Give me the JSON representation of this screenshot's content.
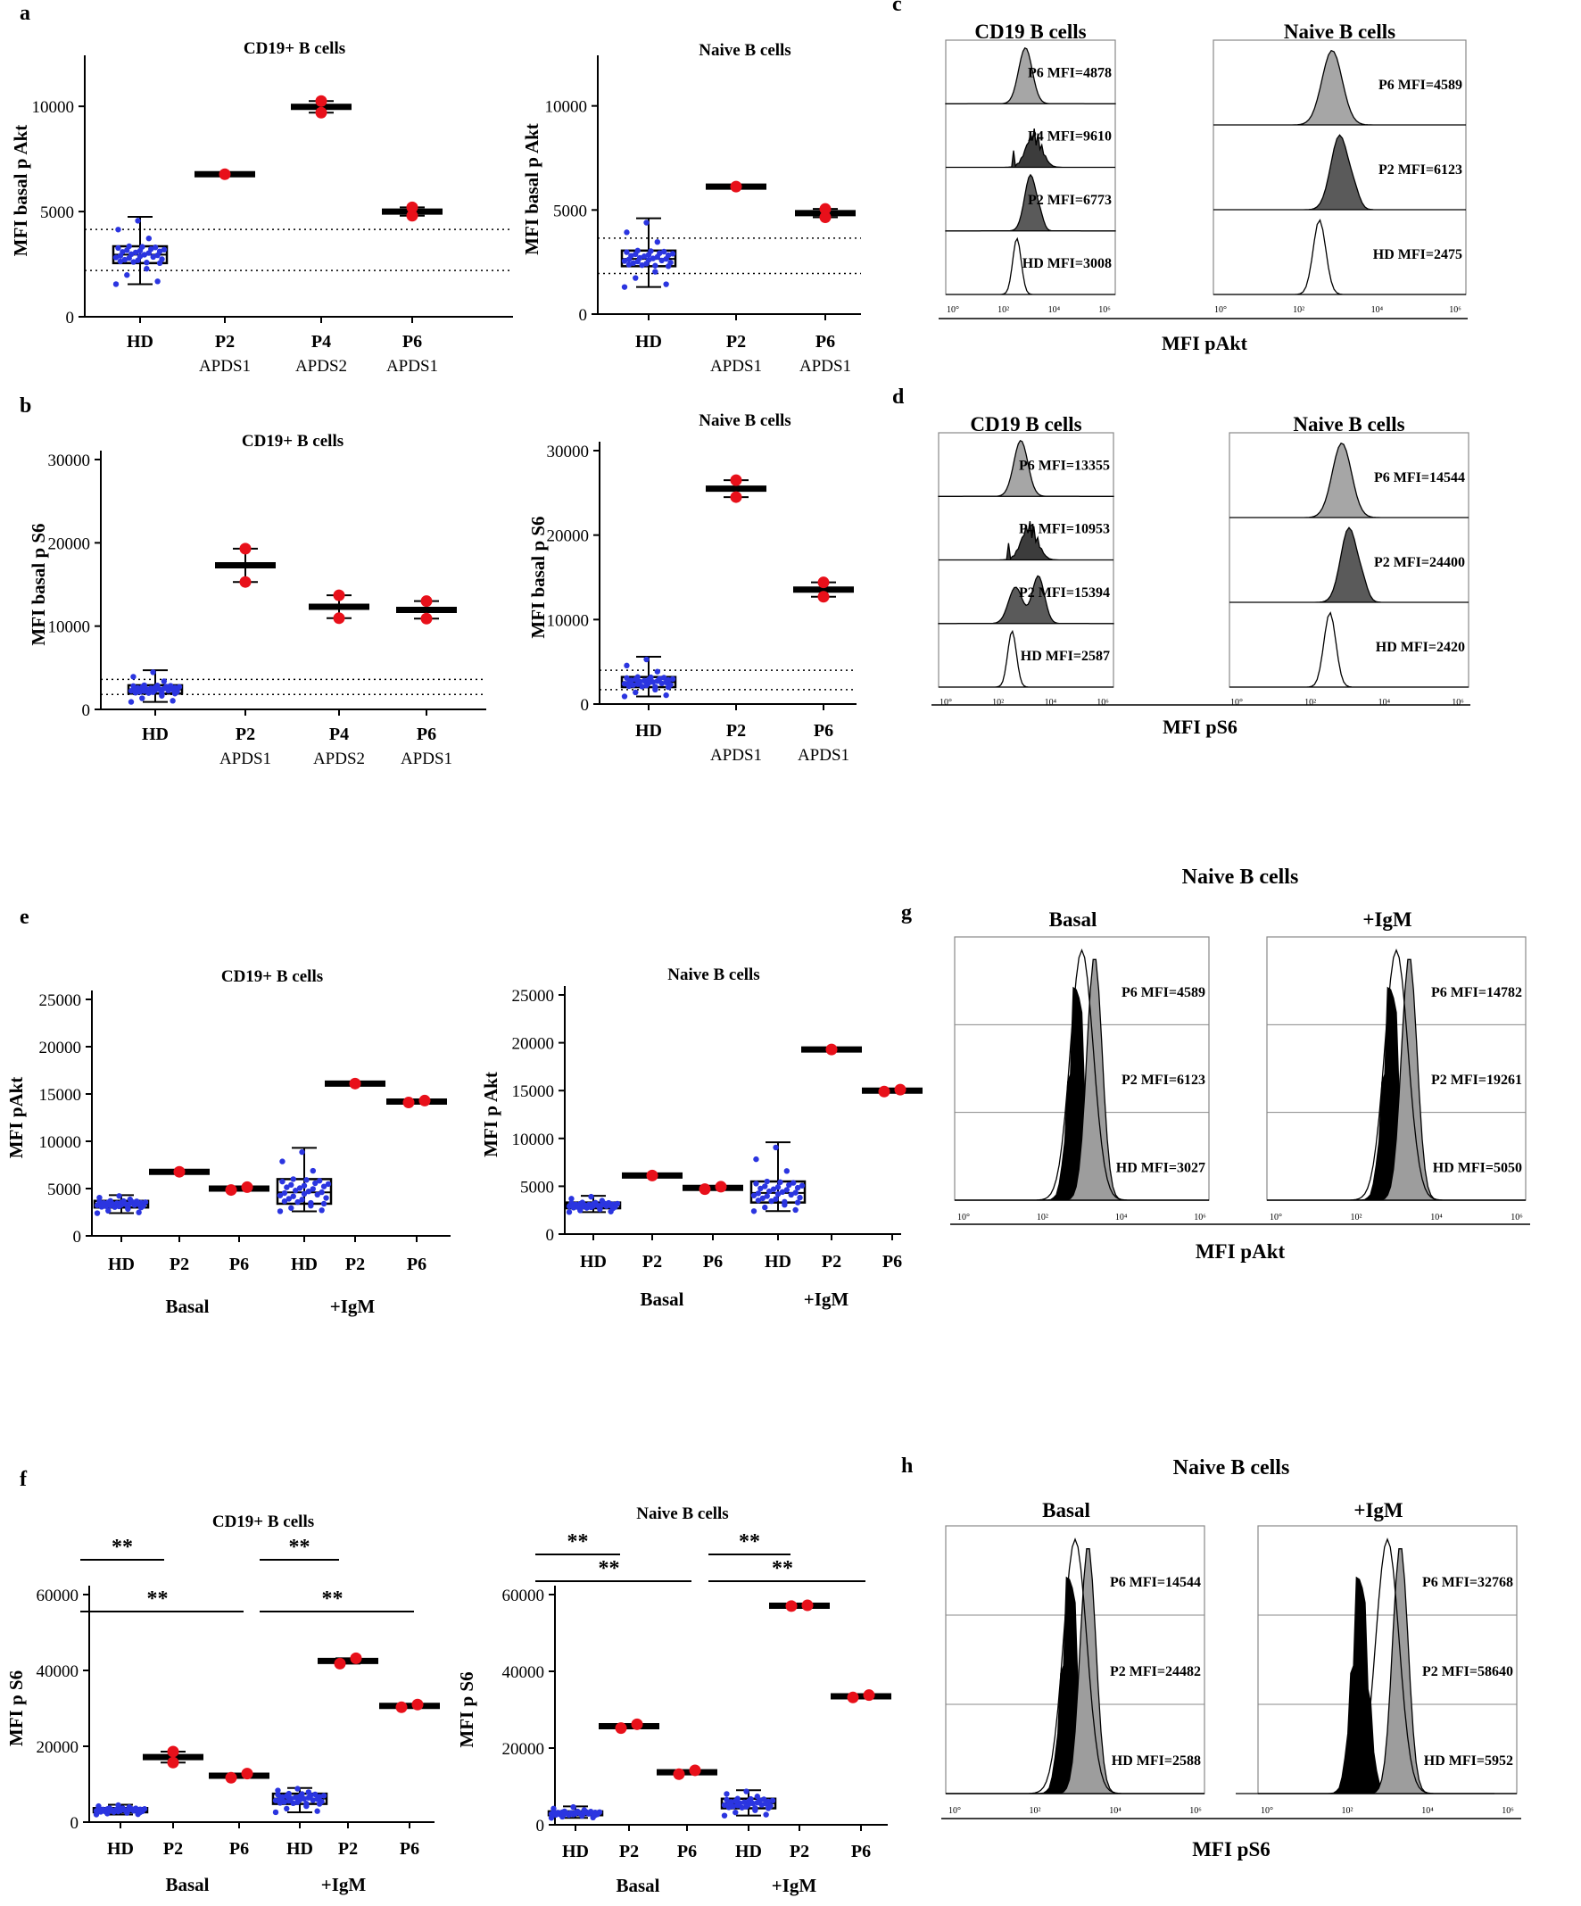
{
  "figure": {
    "panel_labels": [
      "a",
      "b",
      "c",
      "d",
      "e",
      "f",
      "g",
      "h"
    ],
    "naive_title": "Naive B cells",
    "g_measure": "MFI pAkt",
    "h_measure": "MFI pS6",
    "cond_basal": "Basal",
    "cond_igm": "+IgM"
  },
  "chart_data": [
    {
      "id": "a1",
      "type": "scatter",
      "title": "CD19+ B cells",
      "ylabel": "MFI basal p Akt",
      "ylim": [
        0,
        12000
      ],
      "ticks": [
        0,
        5000,
        10000
      ],
      "categories": [
        "HD|",
        "P2|APDS1",
        "P4|APDS2",
        "P6|APDS1"
      ],
      "hd": {
        "q1": 2550,
        "median": 2950,
        "q3": 3350,
        "min": 1550,
        "max": 4750
      },
      "patients": [
        [
          6773
        ],
        [
          9700,
          10250
        ],
        [
          4800,
          5200
        ]
      ],
      "ref_lines": [
        2200,
        4150
      ]
    },
    {
      "id": "a2",
      "type": "scatter",
      "title": "Naive B cells",
      "ylabel": "MFI basal p Akt",
      "ylim": [
        0,
        12000
      ],
      "ticks": [
        0,
        5000,
        10000
      ],
      "categories": [
        "HD|",
        "P2|APDS1",
        "P6|APDS1"
      ],
      "hd": {
        "q1": 2300,
        "median": 2650,
        "q3": 3050,
        "min": 1300,
        "max": 4600
      },
      "patients": [
        [
          6123
        ],
        [
          4650,
          5050
        ]
      ],
      "ref_lines": [
        1950,
        3650
      ]
    },
    {
      "id": "b1",
      "type": "scatter",
      "title": "CD19+ B cells",
      "ylabel": "MFI basal p S6",
      "ylim": [
        0,
        30000
      ],
      "ticks": [
        0,
        10000,
        20000,
        30000
      ],
      "categories": [
        "HD|",
        "P2|APDS1",
        "P4|APDS2",
        "P6|APDS1"
      ],
      "hd": {
        "q1": 1900,
        "median": 2400,
        "q3": 2900,
        "min": 900,
        "max": 4700
      },
      "patients": [
        [
          15300,
          19300
        ],
        [
          10950,
          13700
        ],
        [
          10900,
          13000
        ]
      ],
      "ref_lines": [
        1800,
        3600
      ]
    },
    {
      "id": "b2",
      "type": "scatter",
      "title": "Naive B cells",
      "ylabel": "MFI basal p S6",
      "ylim": [
        0,
        30000
      ],
      "ticks": [
        0,
        10000,
        20000,
        30000
      ],
      "categories": [
        "HD|",
        "P2|APDS1",
        "P6|APDS1"
      ],
      "hd": {
        "q1": 2000,
        "median": 2600,
        "q3": 3200,
        "min": 900,
        "max": 5600
      },
      "patients": [
        [
          24500,
          26500
        ],
        [
          12700,
          14400
        ]
      ],
      "ref_lines": [
        1700,
        4000
      ]
    },
    {
      "id": "e1",
      "type": "scatter",
      "title": "CD19+ B cells",
      "ylabel": "MFI pAkt",
      "ylim": [
        0,
        25000
      ],
      "ticks": [
        0,
        5000,
        10000,
        15000,
        20000,
        25000
      ],
      "categories": [
        "HD",
        "P2",
        "P6",
        "HD",
        "P2",
        "P6"
      ],
      "groups": [
        "Basal",
        "+IgM"
      ],
      "hd": [
        {
          "q1": 3000,
          "median": 3300,
          "q3": 3700,
          "min": 2400,
          "max": 4300
        },
        {
          "q1": 3400,
          "median": 4600,
          "q3": 6000,
          "min": 2600,
          "max": 9300
        }
      ],
      "patients": [
        [
          6773
        ],
        [
          4850,
          5150
        ],
        [
          16100
        ],
        [
          14100,
          14300
        ]
      ]
    },
    {
      "id": "e2",
      "type": "scatter",
      "title": "Naive B cells",
      "ylabel": "MFI p Akt",
      "ylim": [
        0,
        25000
      ],
      "ticks": [
        0,
        5000,
        10000,
        15000,
        20000,
        25000
      ],
      "categories": [
        "HD",
        "P2",
        "P6",
        "HD",
        "P2",
        "P6"
      ],
      "groups": [
        "Basal",
        "+IgM"
      ],
      "hd": [
        {
          "q1": 2700,
          "median": 3000,
          "q3": 3300,
          "min": 2300,
          "max": 4000
        },
        {
          "q1": 3300,
          "median": 4300,
          "q3": 5500,
          "min": 2400,
          "max": 9600
        }
      ],
      "patients": [
        [
          6123
        ],
        [
          4700,
          4950
        ],
        [
          19300
        ],
        [
          14900,
          15100
        ]
      ]
    },
    {
      "id": "f1",
      "type": "scatter",
      "title": "CD19+ B cells",
      "ylabel": "MFI p S6",
      "ylim": [
        0,
        60000
      ],
      "ticks": [
        0,
        20000,
        40000,
        60000
      ],
      "categories": [
        "HD",
        "P2",
        "P6",
        "HD",
        "P2",
        "P6"
      ],
      "groups": [
        "Basal",
        "+IgM"
      ],
      "hd": [
        {
          "q1": 2600,
          "median": 3100,
          "q3": 3700,
          "min": 2000,
          "max": 4600
        },
        {
          "q1": 4800,
          "median": 6200,
          "q3": 7500,
          "min": 2600,
          "max": 9000
        }
      ],
      "patients": [
        [
          15700,
          18600
        ],
        [
          11700,
          12800
        ],
        [
          41800,
          43200
        ],
        [
          30300,
          31000
        ]
      ],
      "significance": [
        {
          "label": "**",
          "from": 0,
          "to": 1,
          "level": 0
        },
        {
          "label": "**",
          "from": 0,
          "to": 2,
          "level": 1
        },
        {
          "label": "**",
          "from": 3,
          "to": 4,
          "level": 0
        },
        {
          "label": "**",
          "from": 3,
          "to": 5,
          "level": 1
        }
      ]
    },
    {
      "id": "f2",
      "type": "scatter",
      "title": "Naive B cells",
      "ylabel": "MFI p S6",
      "ylim": [
        0,
        60000
      ],
      "ticks": [
        0,
        20000,
        40000,
        60000
      ],
      "categories": [
        "HD",
        "P2",
        "P6",
        "HD",
        "P2",
        "P6"
      ],
      "groups": [
        "Basal",
        "+IgM"
      ],
      "hd": [
        {
          "q1": 2500,
          "median": 3000,
          "q3": 3500,
          "min": 1800,
          "max": 4800
        },
        {
          "q1": 4300,
          "median": 5600,
          "q3": 6800,
          "min": 2400,
          "max": 9000
        }
      ],
      "patients": [
        [
          25200,
          26200
        ],
        [
          13200,
          14200
        ],
        [
          57000,
          57200
        ],
        [
          33200,
          33800
        ]
      ],
      "significance": [
        {
          "label": "**",
          "from": 0,
          "to": 1,
          "level": 0
        },
        {
          "label": "**",
          "from": 0,
          "to": 2,
          "level": 1
        },
        {
          "label": "**",
          "from": 3,
          "to": 4,
          "level": 0
        },
        {
          "label": "**",
          "from": 3,
          "to": 5,
          "level": 1
        }
      ]
    },
    {
      "id": "c",
      "type": "histogram",
      "xlabel": "MFI pAkt",
      "log_ticks": [
        "10°",
        "10²",
        "10⁴",
        "10⁶"
      ],
      "panels": [
        {
          "title": "CD19 B cells",
          "rows": [
            {
              "label": "P6 MFI=4878",
              "style": "light"
            },
            {
              "label": "P4 MFI=9610",
              "style": "jagged"
            },
            {
              "label": "P2 MFI=6773",
              "style": "dark"
            },
            {
              "label": "HD MFI=3008",
              "style": "open"
            }
          ]
        },
        {
          "title": "Naive B cells",
          "rows": [
            {
              "label": "P6 MFI=4589",
              "style": "light"
            },
            {
              "label": "P2 MFI=6123",
              "style": "dark"
            },
            {
              "label": "HD MFI=2475",
              "style": "open"
            }
          ]
        }
      ]
    },
    {
      "id": "d",
      "type": "histogram",
      "xlabel": "MFI pS6",
      "log_ticks": [
        "10°",
        "10²",
        "10⁴",
        "10⁶"
      ],
      "panels": [
        {
          "title": "CD19 B cells",
          "rows": [
            {
              "label": "P6 MFI=13355",
              "style": "light"
            },
            {
              "label": "P4 MFI=10953",
              "style": "jagged"
            },
            {
              "label": "P2 MFI=15394",
              "style": "dark-bimodal"
            },
            {
              "label": "HD MFI=2587",
              "style": "open"
            }
          ]
        },
        {
          "title": "Naive B cells",
          "rows": [
            {
              "label": "P6 MFI=14544",
              "style": "light"
            },
            {
              "label": "P2 MFI=24400",
              "style": "dark"
            },
            {
              "label": "HD MFI=2420",
              "style": "open"
            }
          ]
        }
      ]
    },
    {
      "id": "g",
      "type": "histogram-overlay",
      "xlabel": "MFI pAkt",
      "log_ticks": [
        "10°",
        "10²",
        "10⁴",
        "10⁶"
      ],
      "panels": [
        {
          "title": "Basal",
          "rows": [
            {
              "label": "P6 MFI=4589",
              "style": "open"
            },
            {
              "label": "P2 MFI=6123",
              "style": "gray"
            },
            {
              "label": "HD MFI=3027",
              "style": "black"
            }
          ]
        },
        {
          "title": "+IgM",
          "rows": [
            {
              "label": "P6 MFI=14782",
              "style": "open"
            },
            {
              "label": "P2 MFI=19261",
              "style": "gray"
            },
            {
              "label": "HD MFI=5050",
              "style": "black"
            }
          ]
        }
      ]
    },
    {
      "id": "h",
      "type": "histogram-overlay",
      "xlabel": "MFI pS6",
      "log_ticks": [
        "10°",
        "10²",
        "10⁴",
        "10⁶"
      ],
      "panels": [
        {
          "title": "Basal",
          "rows": [
            {
              "label": "P6 MFI=14544",
              "style": "open"
            },
            {
              "label": "P2 MFI=24482",
              "style": "gray"
            },
            {
              "label": "HD MFI=2588",
              "style": "black"
            }
          ]
        },
        {
          "title": "+IgM",
          "rows": [
            {
              "label": "P6 MFI=32768",
              "style": "open"
            },
            {
              "label": "P2 MFI=58640",
              "style": "gray"
            },
            {
              "label": "HD MFI=5952",
              "style": "black"
            }
          ]
        }
      ]
    }
  ]
}
